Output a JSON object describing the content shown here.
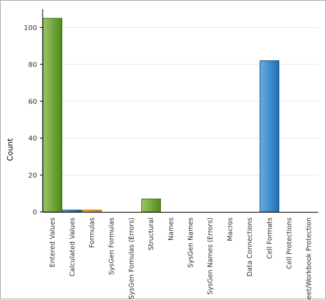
{
  "chart_data": {
    "type": "bar",
    "ylabel": "Count",
    "xlabel": "",
    "ylim": [
      0,
      110
    ],
    "yticks": [
      0,
      20,
      40,
      60,
      80,
      100
    ],
    "grid": true,
    "legend": "none",
    "categories": [
      "Entered Values",
      "Calculated Values",
      "Formulas",
      "SysGen Formulas",
      "SysGen Fomulas (Errors)",
      "Structural",
      "Names",
      "SysGen Names",
      "SysGen Names (Errors)",
      "Macros",
      "Data Connections",
      "Cell Formats",
      "Cell Protections",
      "Sheet/Workbook Protection"
    ],
    "values": [
      105,
      1,
      1,
      0,
      0,
      7,
      0,
      0,
      0,
      0,
      0,
      82,
      0,
      0
    ],
    "colors": [
      "green",
      "blue",
      "orange",
      "green",
      "green",
      "green",
      "green",
      "green",
      "green",
      "green",
      "green",
      "blue",
      "blue",
      "blue"
    ],
    "palette": {
      "green": {
        "light": "#9cc56a",
        "dark": "#4f8a16",
        "stroke": "#3f6e10"
      },
      "blue": {
        "light": "#6aaee0",
        "dark": "#1a6fb5",
        "stroke": "#154f82"
      },
      "orange": {
        "light": "#f6c35a",
        "dark": "#e08a10",
        "stroke": "#b06c0a"
      }
    }
  }
}
